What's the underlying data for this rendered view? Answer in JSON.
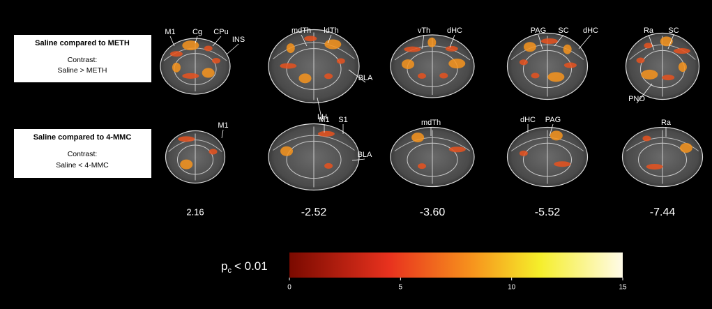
{
  "rows": [
    {
      "title": "Saline compared to METH",
      "contrast_label": "Contrast:",
      "contrast": "Saline > METH",
      "slices": [
        {
          "labels": [
            "M1",
            "Cg",
            "CPu",
            "INS"
          ]
        },
        {
          "labels": [
            "mdTh",
            "ldTh",
            "BLA",
            "LH"
          ]
        },
        {
          "labels": [
            "vTh",
            "dHC"
          ]
        },
        {
          "labels": [
            "PAG",
            "SC",
            "dHC"
          ]
        },
        {
          "labels": [
            "Ra",
            "SC",
            "PNO"
          ]
        }
      ]
    },
    {
      "title": "Saline compared to 4-MMC",
      "contrast_label": "Contrast:",
      "contrast": "Saline < 4-MMC",
      "slices": [
        {
          "labels": [
            "M1"
          ]
        },
        {
          "labels": [
            "M1",
            "S1",
            "BLA"
          ]
        },
        {
          "labels": [
            "mdTh"
          ]
        },
        {
          "labels": [
            "dHC",
            "PAG"
          ]
        },
        {
          "labels": [
            "Ra"
          ]
        }
      ]
    }
  ],
  "bregma": [
    "2.16",
    "-2.52",
    "-3.60",
    "-5.52",
    "-7.44"
  ],
  "threshold": {
    "symbol": "p",
    "subscript": "c",
    "text": "< 0.01"
  },
  "colorbar": {
    "range": [
      0,
      15
    ],
    "ticks": [
      0,
      5,
      10,
      15
    ]
  }
}
